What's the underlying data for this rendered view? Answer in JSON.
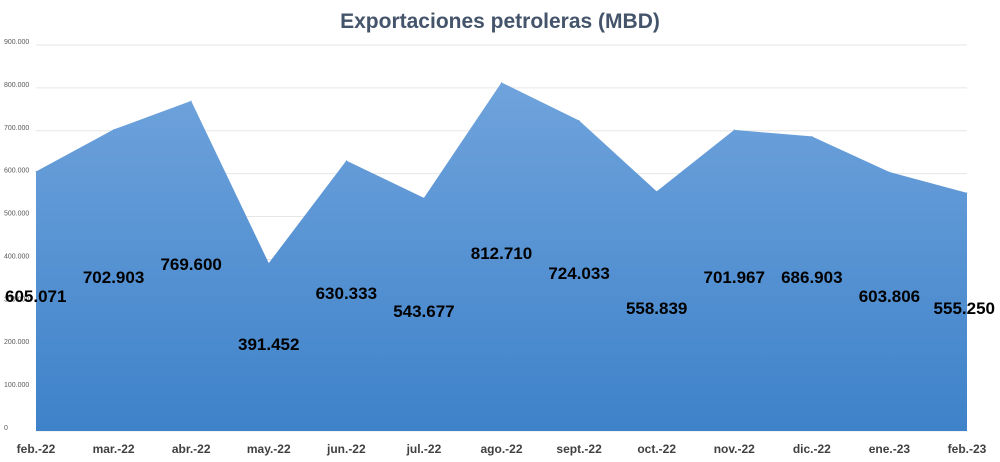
{
  "chart_data": {
    "type": "area",
    "title": "Exportaciones petroleras (MBD)",
    "categories": [
      "feb.-22",
      "mar.-22",
      "abr.-22",
      "may.-22",
      "jun.-22",
      "jul.-22",
      "ago.-22",
      "sept.-22",
      "oct.-22",
      "nov.-22",
      "dic.-22",
      "ene.-23",
      "feb.-23"
    ],
    "series": [
      {
        "values": [
          605071,
          702903,
          769600,
          391452,
          630333,
          543677,
          812710,
          724033,
          558839,
          701967,
          686903,
          603806,
          555250
        ],
        "data_labels": [
          "605.071",
          "702.903",
          "769.600",
          "391.452",
          "630.333",
          "543.677",
          "812.710",
          "724.033",
          "558.839",
          "701.967",
          "686.903",
          "603.806",
          "555.250"
        ],
        "color_top": "#6fa3dc",
        "color_bottom": "#3e82c9"
      }
    ],
    "yticks": [
      "0",
      "100.000",
      "200.000",
      "300.000",
      "400.000",
      "500.000",
      "600.000",
      "700.000",
      "800.000",
      "900.000"
    ],
    "ylim": [
      0,
      900000
    ],
    "grid": true,
    "legend": "none"
  }
}
